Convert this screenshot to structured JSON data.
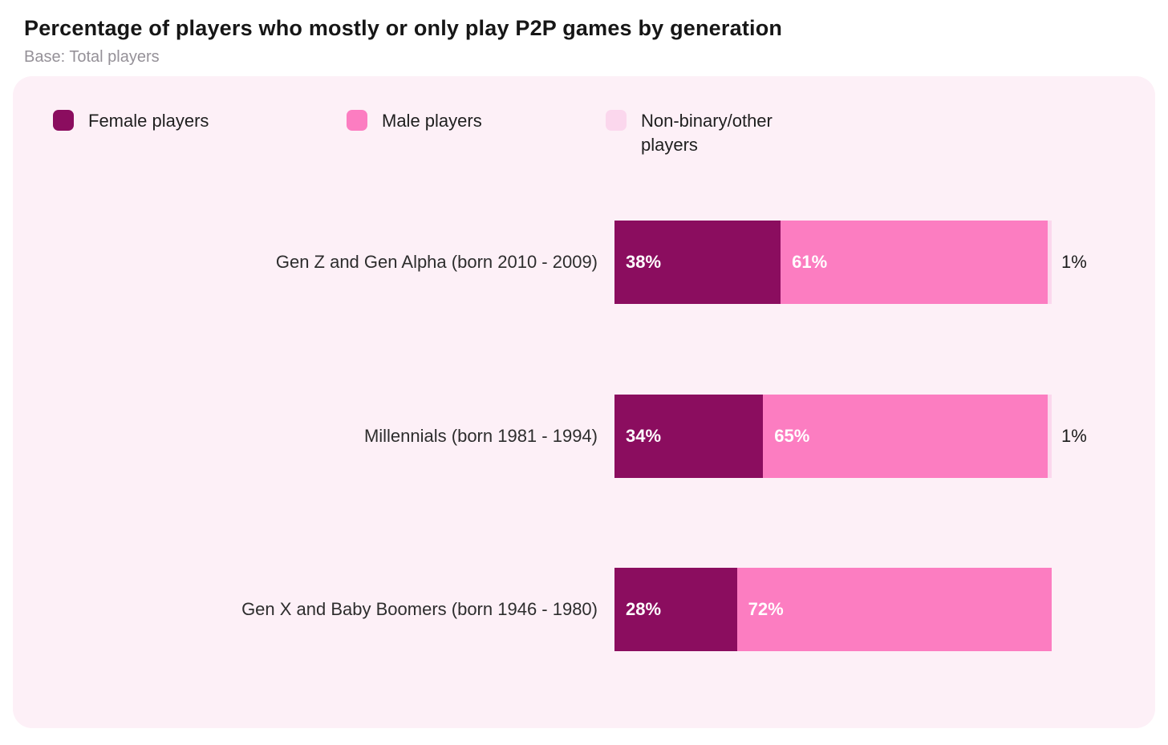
{
  "chart_data": {
    "type": "bar",
    "orientation": "horizontal",
    "stacked": true,
    "title": "Percentage of players who mostly or only play P2P games by generation",
    "subtitle": "Base: Total players",
    "legend_position": "top",
    "grid": false,
    "xlim": [
      0,
      100
    ],
    "categories": [
      "Gen Z and Gen Alpha (born 2010 - 2009)",
      "Millennials (born 1981 - 1994)",
      "Gen X and Baby Boomers (born 1946 - 1980)"
    ],
    "series": [
      {
        "name": "Female players",
        "color": "#8B0D5F",
        "values": [
          38,
          34,
          28
        ]
      },
      {
        "name": "Male players",
        "color": "#FC7DC1",
        "values": [
          61,
          65,
          72
        ]
      },
      {
        "name": "Non-binary/other players",
        "color": "#FBD7ED",
        "values": [
          1,
          1,
          0
        ]
      }
    ],
    "rows": [
      {
        "label": "Gen Z and Gen Alpha (born 2010 - 2009)",
        "female": 38,
        "male": 61,
        "nonbinary": 1,
        "female_label": "38%",
        "male_label": "61%",
        "outside_label": "1%"
      },
      {
        "label": "Millennials (born 1981 - 1994)",
        "female": 34,
        "male": 65,
        "nonbinary": 1,
        "female_label": "34%",
        "male_label": "65%",
        "outside_label": "1%"
      },
      {
        "label": "Gen X and Baby Boomers (born 1946 - 1980)",
        "female": 28,
        "male": 72,
        "nonbinary": 0,
        "female_label": "28%",
        "male_label": "72%",
        "outside_label": ""
      }
    ],
    "legend": {
      "female_label": "Female players",
      "male_label": "Male players",
      "nonbinary_label": "Non-binary/other players"
    }
  },
  "colors": {
    "female": "#8B0D5F",
    "male": "#FC7DC1",
    "nonbinary": "#FBD7ED",
    "panel_bg": "#FDF0F7",
    "value_label": "#FFFFFF",
    "outside_label": "#1A1A1A"
  }
}
